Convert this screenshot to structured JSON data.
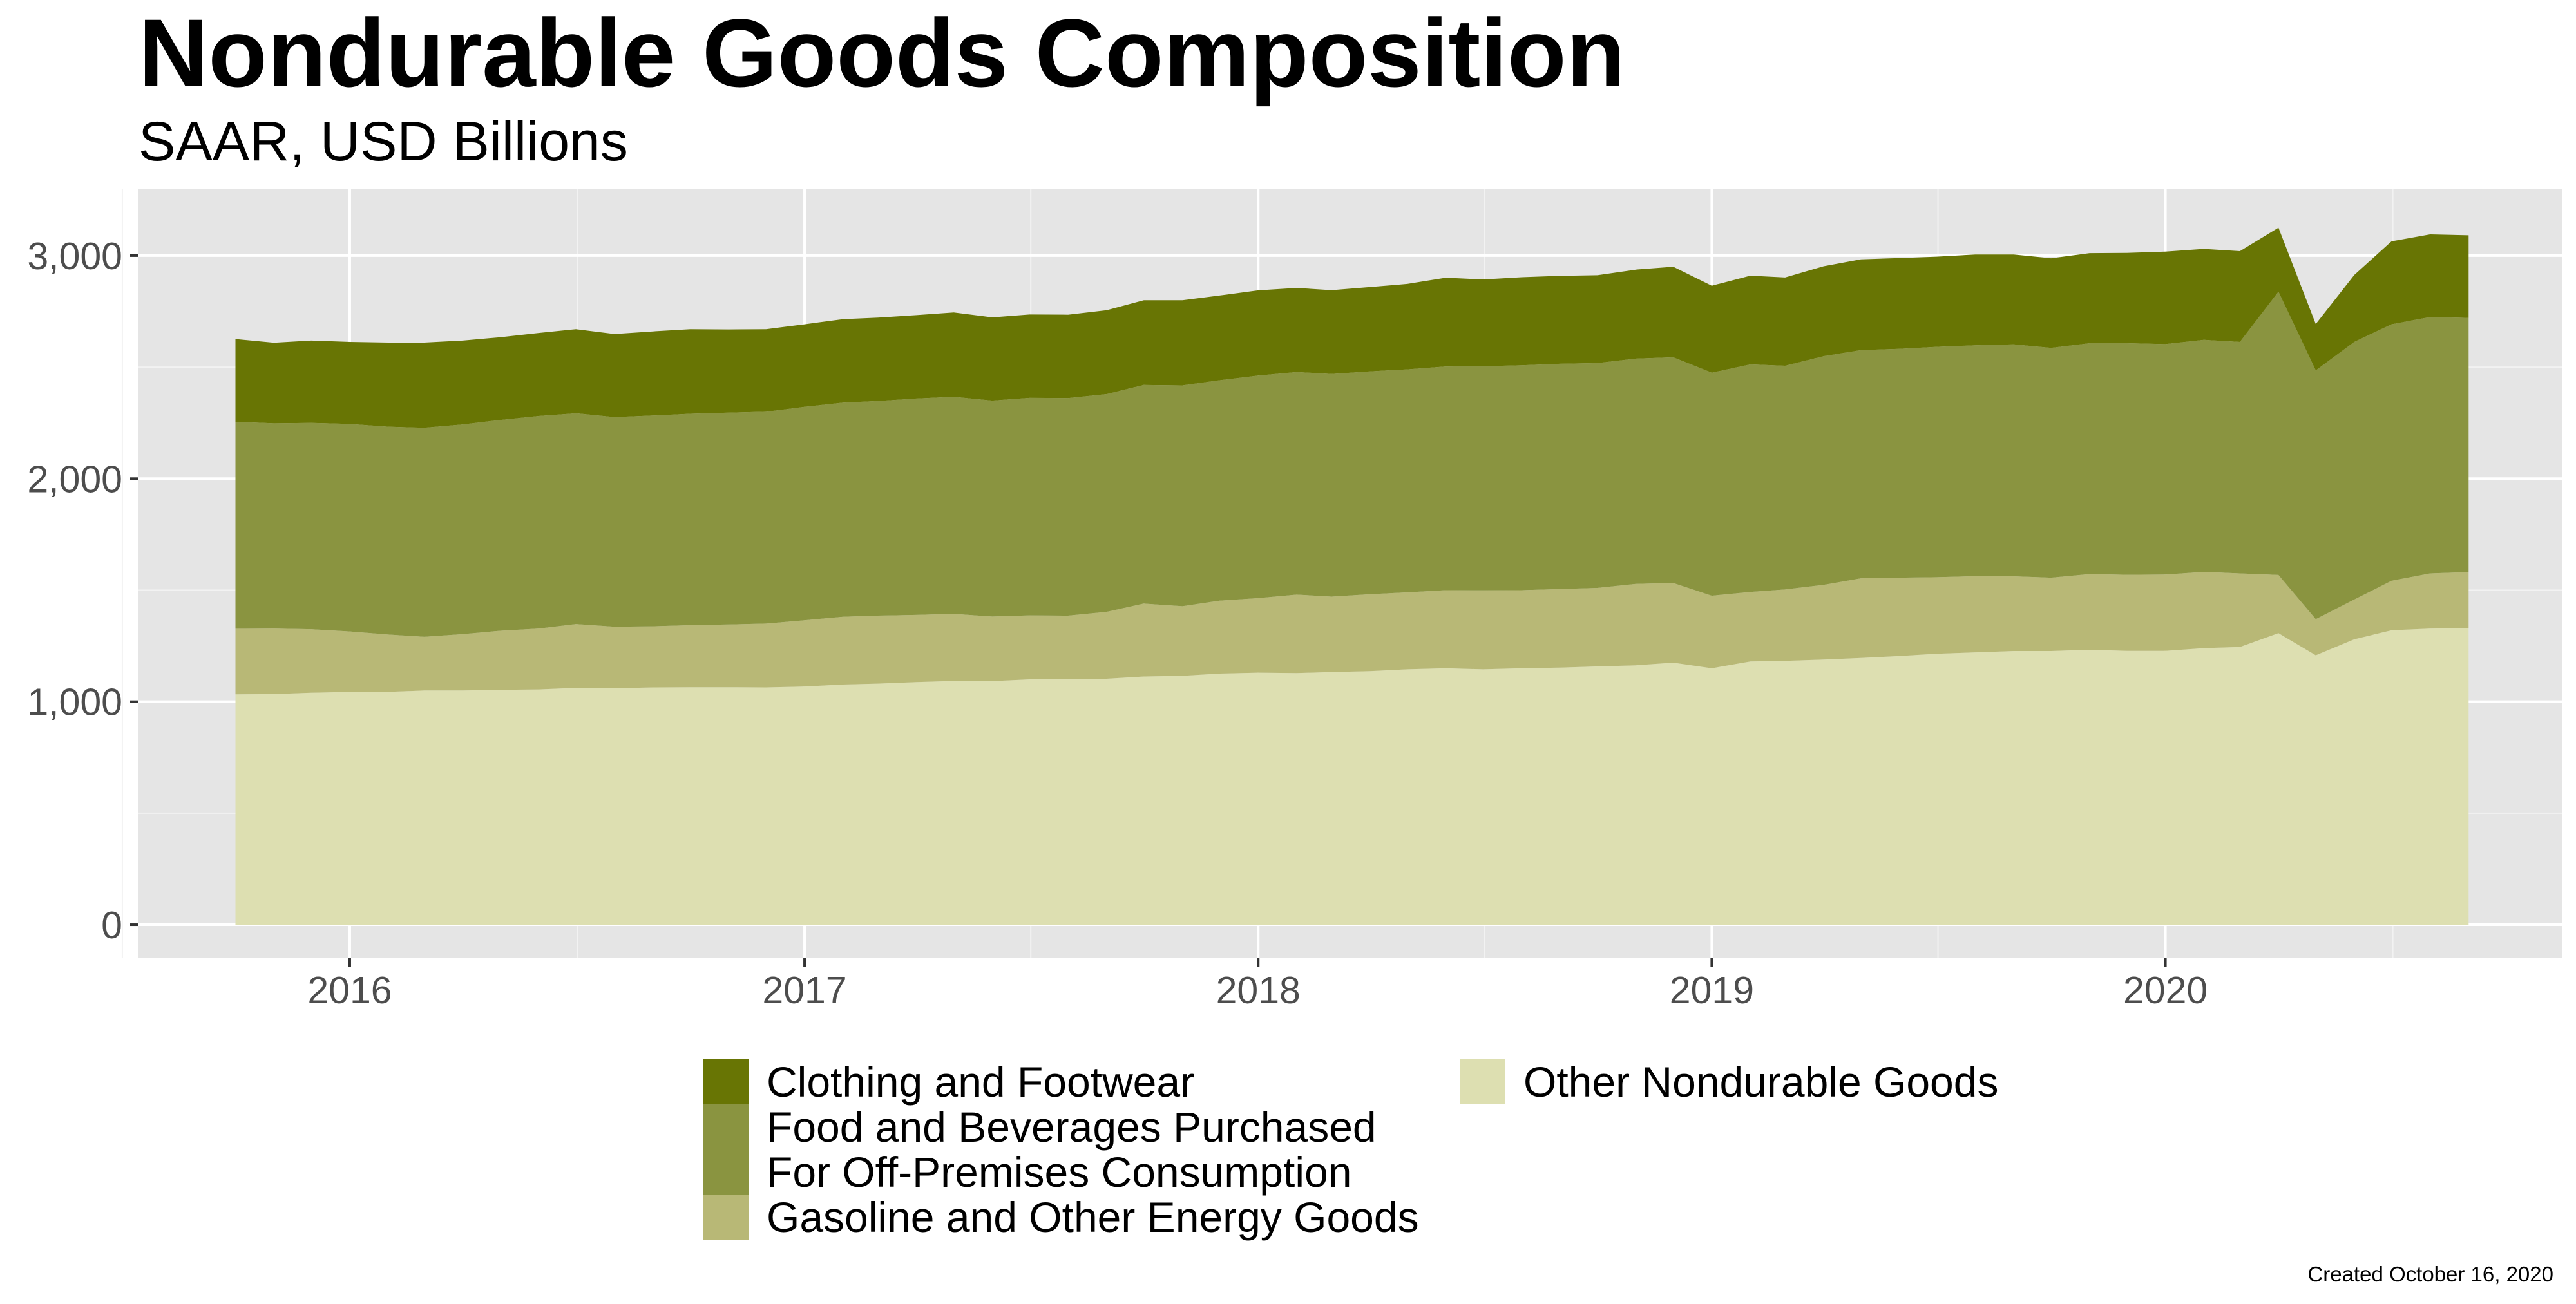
{
  "chart_data": {
    "type": "area",
    "stacked": true,
    "title": "Nondurable Goods Composition",
    "subtitle": "SAAR, USD Billions",
    "caption": "Created October 16, 2020",
    "xlabel": "",
    "ylabel": "",
    "xlim": [
      "2015-07-15",
      "2020-11-15"
    ],
    "ylim": [
      -150,
      3300
    ],
    "x_ticks": [
      "2016",
      "2017",
      "2018",
      "2019",
      "2020"
    ],
    "y_ticks": [
      "0",
      "1,000",
      "2,000",
      "3,000"
    ],
    "legend_position": "bottom",
    "grid": true,
    "background": "#e5e5e5",
    "x": [
      "2015-10-01",
      "2015-11-01",
      "2015-12-01",
      "2016-01-01",
      "2016-02-01",
      "2016-03-01",
      "2016-04-01",
      "2016-05-01",
      "2016-06-01",
      "2016-07-01",
      "2016-08-01",
      "2016-09-01",
      "2016-10-01",
      "2016-11-01",
      "2016-12-01",
      "2017-01-01",
      "2017-02-01",
      "2017-03-01",
      "2017-04-01",
      "2017-05-01",
      "2017-06-01",
      "2017-07-01",
      "2017-08-01",
      "2017-09-01",
      "2017-10-01",
      "2017-11-01",
      "2017-12-01",
      "2018-01-01",
      "2018-02-01",
      "2018-03-01",
      "2018-04-01",
      "2018-05-01",
      "2018-06-01",
      "2018-07-01",
      "2018-08-01",
      "2018-09-01",
      "2018-10-01",
      "2018-11-01",
      "2018-12-01",
      "2019-01-01",
      "2019-02-01",
      "2019-03-01",
      "2019-04-01",
      "2019-05-01",
      "2019-06-01",
      "2019-07-01",
      "2019-08-01",
      "2019-09-01",
      "2019-10-01",
      "2019-11-01",
      "2019-12-01",
      "2020-01-01",
      "2020-02-01",
      "2020-03-01",
      "2020-04-01",
      "2020-05-01",
      "2020-06-01",
      "2020-07-01",
      "2020-08-01",
      "2020-09-01"
    ],
    "series": [
      {
        "name": "Other Nondurable Goods",
        "color": "#dddfb1",
        "values": [
          1033,
          1034,
          1040,
          1044,
          1044,
          1050,
          1050,
          1053,
          1055,
          1062,
          1060,
          1064,
          1065,
          1065,
          1064,
          1068,
          1077,
          1081,
          1088,
          1093,
          1092,
          1100,
          1103,
          1103,
          1113,
          1116,
          1126,
          1130,
          1128,
          1133,
          1137,
          1145,
          1150,
          1145,
          1150,
          1153,
          1158,
          1163,
          1175,
          1150,
          1180,
          1183,
          1189,
          1196,
          1205,
          1215,
          1221,
          1227,
          1227,
          1233,
          1228,
          1228,
          1240,
          1245,
          1307,
          1208,
          1280,
          1320,
          1328,
          1330
        ]
      },
      {
        "name": "Gasoline and Other Energy Goods",
        "color": "#b8b876",
        "values": [
          294,
          294,
          285,
          271,
          257,
          241,
          253,
          265,
          273,
          286,
          276,
          274,
          278,
          281,
          286,
          297,
          304,
          305,
          301,
          301,
          290,
          287,
          283,
          300,
          327,
          312,
          327,
          334,
          352,
          338,
          345,
          345,
          350,
          354,
          350,
          352,
          352,
          365,
          357,
          325,
          312,
          320,
          335,
          357,
          351,
          343,
          342,
          335,
          329,
          339,
          341,
          342,
          342,
          330,
          261,
          162,
          178,
          222,
          247,
          251
        ]
      },
      {
        "name": "Food and Beverages Purchased For Off-Premises Consumption",
        "color": "#8a9440",
        "values": [
          928,
          920,
          925,
          930,
          932,
          937,
          940,
          945,
          953,
          945,
          940,
          945,
          948,
          950,
          950,
          957,
          960,
          962,
          970,
          973,
          968,
          975,
          975,
          976,
          980,
          990,
          988,
          998,
          998,
          998,
          999,
          1000,
          1003,
          1005,
          1008,
          1010,
          1008,
          1010,
          1012,
          1000,
          1020,
          1003,
          1025,
          1023,
          1026,
          1033,
          1035,
          1040,
          1030,
          1035,
          1038,
          1033,
          1040,
          1038,
          1270,
          1115,
          1155,
          1150,
          1150,
          1140
        ]
      },
      {
        "name": "Clothing and Footwear",
        "color": "#687504",
        "values": [
          371,
          361,
          369,
          368,
          377,
          382,
          376,
          371,
          372,
          377,
          372,
          377,
          379,
          373,
          370,
          370,
          374,
          374,
          374,
          378,
          373,
          374,
          374,
          376,
          380,
          382,
          380,
          382,
          377,
          376,
          378,
          383,
          398,
          389,
          395,
          394,
          394,
          399,
          406,
          390,
          398,
          396,
          403,
          407,
          407,
          404,
          407,
          403,
          402,
          404,
          405,
          415,
          408,
          407,
          287,
          208,
          300,
          372,
          370,
          370
        ]
      }
    ]
  },
  "legend": {
    "items": [
      {
        "label": "Clothing and Footwear",
        "color": "#687504"
      },
      {
        "label": "Food and Beverages Purchased\nFor Off-Premises Consumption",
        "color": "#8a9440"
      },
      {
        "label": "Gasoline and Other Energy Goods",
        "color": "#b8b876"
      },
      {
        "label": "Other Nondurable Goods",
        "color": "#dddfb1"
      }
    ]
  }
}
